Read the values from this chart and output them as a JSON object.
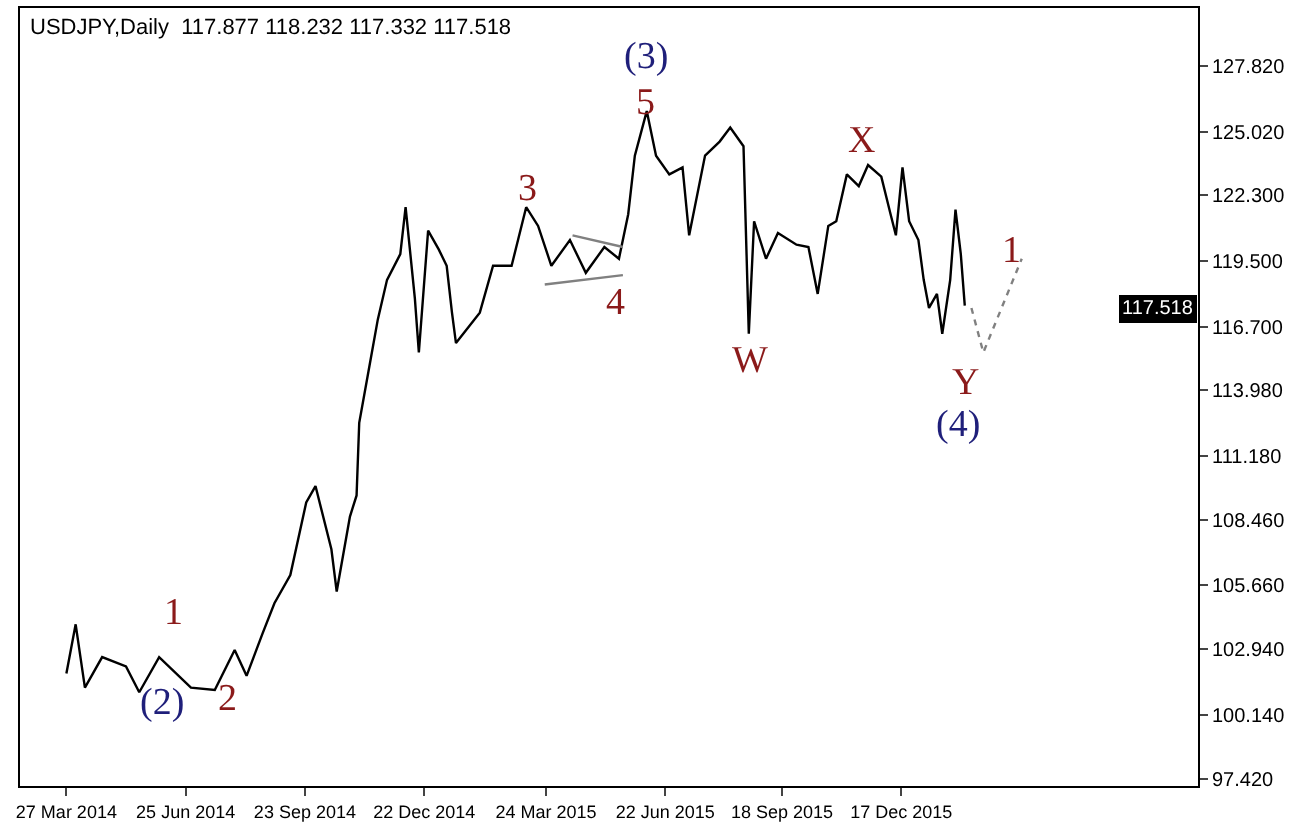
{
  "chart_data": {
    "type": "line",
    "title": "USDJPY,Daily  117.877 118.232 117.332 117.518",
    "xlim": [
      "2014-02-20",
      "2016-07-28"
    ],
    "xticks": [
      {
        "value": "2014-03-27",
        "label": "27 Mar 2014"
      },
      {
        "value": "2014-06-25",
        "label": "25 Jun 2014"
      },
      {
        "value": "2014-09-23",
        "label": "23 Sep 2014"
      },
      {
        "value": "2014-12-22",
        "label": "22 Dec 2014"
      },
      {
        "value": "2015-03-24",
        "label": "24 Mar 2015"
      },
      {
        "value": "2015-06-22",
        "label": "22 Jun 2015"
      },
      {
        "value": "2015-09-18",
        "label": "18 Sep 2015"
      },
      {
        "value": "2015-12-17",
        "label": "17 Dec 2015"
      }
    ],
    "ylim": [
      97.1,
      130.3
    ],
    "yticks": [
      {
        "value": 97.42,
        "label": "97.420"
      },
      {
        "value": 100.14,
        "label": "100.140"
      },
      {
        "value": 102.94,
        "label": "102.940"
      },
      {
        "value": 105.66,
        "label": "105.660"
      },
      {
        "value": 108.46,
        "label": "108.460"
      },
      {
        "value": 111.18,
        "label": "111.180"
      },
      {
        "value": 113.98,
        "label": "113.980"
      },
      {
        "value": 116.7,
        "label": "116.700"
      },
      {
        "value": 119.5,
        "label": "119.500"
      },
      {
        "value": 122.3,
        "label": "122.300"
      },
      {
        "value": 125.02,
        "label": "125.020"
      },
      {
        "value": 127.82,
        "label": "127.820"
      }
    ],
    "marker": "none",
    "series": [
      {
        "color": "#000000",
        "line_style": "solid",
        "x": [
          "2014-03-27",
          "2014-04-03",
          "2014-04-10",
          "2014-04-23",
          "2014-05-11",
          "2014-05-21",
          "2014-06-05",
          "2014-06-29",
          "2014-07-17",
          "2014-08-01",
          "2014-08-10",
          "2014-08-22",
          "2014-08-31",
          "2014-09-12",
          "2014-09-24",
          "2014-10-01",
          "2014-10-13",
          "2014-10-17",
          "2014-10-27",
          "2014-11-01",
          "2014-11-03",
          "2014-11-10",
          "2014-11-17",
          "2014-11-24",
          "2014-12-04",
          "2014-12-08",
          "2014-12-15",
          "2014-12-18",
          "2014-12-25",
          "2015-01-02",
          "2015-01-08",
          "2015-01-12",
          "2015-01-15",
          "2015-02-02",
          "2015-02-12",
          "2015-02-26",
          "2015-03-09",
          "2015-03-18",
          "2015-03-28",
          "2015-04-11",
          "2015-04-23",
          "2015-05-07",
          "2015-05-18",
          "2015-05-25",
          "2015-05-30",
          "2015-06-08",
          "2015-06-15",
          "2015-06-25",
          "2015-07-05",
          "2015-07-10",
          "2015-07-22",
          "2015-08-02",
          "2015-08-10",
          "2015-08-20",
          "2015-08-24",
          "2015-08-28",
          "2015-09-06",
          "2015-09-15",
          "2015-09-29",
          "2015-10-08",
          "2015-10-15",
          "2015-10-23",
          "2015-10-29",
          "2015-11-06",
          "2015-11-15",
          "2015-11-22",
          "2015-12-02",
          "2015-12-09",
          "2015-12-13",
          "2015-12-18",
          "2015-12-23",
          "2015-12-30",
          "2016-01-03",
          "2016-01-07",
          "2016-01-13",
          "2016-01-17",
          "2016-01-23",
          "2016-01-27",
          "2016-01-31",
          "2016-02-03"
        ],
        "values": [
          101.9,
          104.0,
          101.3,
          102.6,
          102.2,
          101.1,
          102.6,
          101.3,
          101.2,
          102.9,
          101.8,
          103.6,
          104.9,
          106.1,
          109.2,
          109.9,
          107.2,
          105.4,
          108.6,
          109.5,
          112.6,
          114.8,
          117.0,
          118.7,
          119.8,
          121.8,
          117.9,
          115.6,
          120.8,
          120.0,
          119.3,
          117.3,
          116.0,
          117.3,
          119.3,
          119.3,
          121.8,
          121.0,
          119.3,
          120.4,
          119.0,
          120.1,
          119.6,
          121.5,
          124.0,
          125.9,
          124.0,
          123.2,
          123.5,
          120.6,
          124.0,
          124.6,
          125.2,
          124.4,
          116.4,
          121.2,
          119.6,
          120.7,
          120.2,
          120.1,
          118.1,
          121.0,
          121.2,
          123.2,
          122.7,
          123.6,
          123.1,
          121.5,
          120.6,
          123.5,
          121.2,
          120.4,
          118.7,
          117.5,
          118.1,
          116.4,
          118.7,
          121.7,
          119.8,
          117.6
        ]
      },
      {
        "color": "#808080",
        "line_style": "solid",
        "x": [
          "2015-03-23",
          "2015-05-21"
        ],
        "values": [
          118.5,
          118.9
        ]
      },
      {
        "color": "#808080",
        "line_style": "solid",
        "x": [
          "2015-04-13",
          "2015-05-21"
        ],
        "values": [
          120.6,
          120.1
        ]
      },
      {
        "color": "#808080",
        "line_style": "dotted",
        "x": [
          "2016-02-08",
          "2016-02-17",
          "2016-03-17"
        ],
        "values": [
          117.5,
          115.6,
          119.6
        ]
      }
    ],
    "annotations": [
      "(2)",
      "1",
      "2",
      "3",
      "4",
      "(3)",
      "5",
      "W",
      "X",
      "Y",
      "(4)",
      "1",
      "117.518"
    ]
  }
}
